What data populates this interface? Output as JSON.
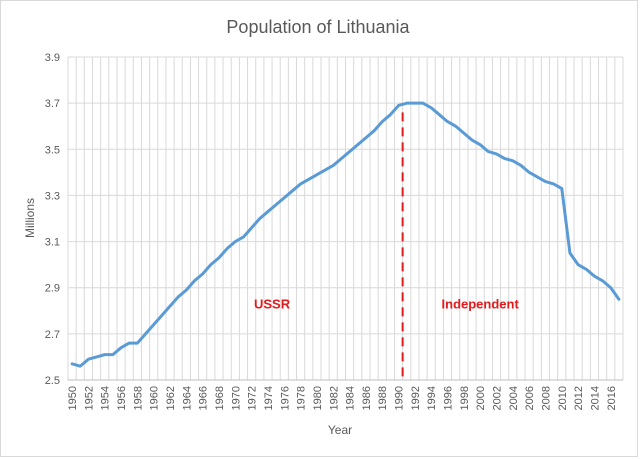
{
  "chart_data": {
    "type": "line",
    "title": "Population of Lithuania",
    "xlabel": "Year",
    "ylabel": "Millions",
    "xlim": [
      1950,
      2017
    ],
    "ylim": [
      2.5,
      3.9
    ],
    "yticks": [
      2.5,
      2.7,
      2.9,
      3.1,
      3.3,
      3.5,
      3.7,
      3.9
    ],
    "ytick_labels": [
      "2.5",
      "2.7",
      "2.9",
      "3.1",
      "3.3",
      "3.5",
      "3.7",
      "3.9"
    ],
    "xticks": [
      1950,
      1952,
      1954,
      1956,
      1958,
      1960,
      1962,
      1964,
      1966,
      1968,
      1970,
      1972,
      1974,
      1976,
      1978,
      1980,
      1982,
      1984,
      1986,
      1988,
      1990,
      1992,
      1994,
      1996,
      1998,
      2000,
      2002,
      2004,
      2006,
      2008,
      2010,
      2012,
      2014,
      2016
    ],
    "xtick_labels": [
      "1950",
      "1952",
      "1954",
      "1956",
      "1958",
      "1960",
      "1962",
      "1964",
      "1966",
      "1968",
      "1970",
      "1972",
      "1974",
      "1976",
      "1978",
      "1980",
      "1982",
      "1984",
      "1986",
      "1988",
      "1990",
      "1992",
      "1994",
      "1996",
      "1998",
      "2000",
      "2002",
      "2004",
      "2006",
      "2008",
      "2010",
      "2012",
      "2014",
      "2016"
    ],
    "grid": true,
    "line_color": "#5b9bd5",
    "series": [
      {
        "x": [
          1950,
          1951,
          1952,
          1953,
          1954,
          1955,
          1956,
          1957,
          1958,
          1959,
          1960,
          1961,
          1962,
          1963,
          1964,
          1965,
          1966,
          1967,
          1968,
          1969,
          1970,
          1971,
          1972,
          1973,
          1974,
          1975,
          1976,
          1977,
          1978,
          1979,
          1980,
          1981,
          1982,
          1983,
          1984,
          1985,
          1986,
          1987,
          1988,
          1989,
          1990,
          1991,
          1992,
          1993,
          1994,
          1995,
          1996,
          1997,
          1998,
          1999,
          2000,
          2001,
          2002,
          2003,
          2004,
          2005,
          2006,
          2007,
          2008,
          2009,
          2010,
          2011,
          2012,
          2013,
          2014,
          2015,
          2016,
          2017
        ],
        "values": [
          2.57,
          2.56,
          2.59,
          2.6,
          2.61,
          2.61,
          2.64,
          2.66,
          2.66,
          2.7,
          2.74,
          2.78,
          2.82,
          2.86,
          2.89,
          2.93,
          2.96,
          3.0,
          3.03,
          3.07,
          3.1,
          3.12,
          3.16,
          3.2,
          3.23,
          3.26,
          3.29,
          3.32,
          3.35,
          3.37,
          3.39,
          3.41,
          3.43,
          3.46,
          3.49,
          3.52,
          3.55,
          3.58,
          3.62,
          3.65,
          3.69,
          3.7,
          3.7,
          3.7,
          3.68,
          3.65,
          3.62,
          3.6,
          3.57,
          3.54,
          3.52,
          3.49,
          3.48,
          3.46,
          3.45,
          3.43,
          3.4,
          3.38,
          3.36,
          3.35,
          3.33,
          3.05,
          3.0,
          2.98,
          2.95,
          2.93,
          2.9,
          2.85
        ]
      }
    ],
    "annotations": [
      {
        "text": "USSR",
        "x": 1974.5,
        "y": 2.81,
        "color": "#e31a1c"
      },
      {
        "text": "Independent",
        "x": 2000,
        "y": 2.81,
        "color": "#e31a1c"
      }
    ],
    "divider": {
      "x": 1990.5,
      "color": "#e31a1c",
      "style": "dashed"
    }
  }
}
